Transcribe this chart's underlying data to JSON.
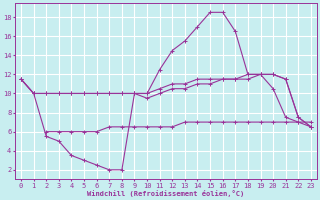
{
  "background_color": "#c8eef0",
  "grid_color": "#ffffff",
  "line_color": "#993399",
  "xlabel": "Windchill (Refroidissement éolien,°C)",
  "xlim": [
    -0.5,
    23.5
  ],
  "ylim": [
    1,
    19.5
  ],
  "yticks": [
    2,
    4,
    6,
    8,
    10,
    12,
    14,
    16,
    18
  ],
  "xticks": [
    0,
    1,
    2,
    3,
    4,
    5,
    6,
    7,
    8,
    9,
    10,
    11,
    12,
    13,
    14,
    15,
    16,
    17,
    18,
    19,
    20,
    21,
    22,
    23
  ],
  "series": [
    {
      "x": [
        0,
        1,
        2,
        3,
        4,
        5,
        6,
        7,
        8,
        9,
        10,
        11,
        12,
        13,
        14,
        15,
        16,
        17,
        18,
        19,
        20,
        21,
        22,
        23
      ],
      "y": [
        11.5,
        10.0,
        5.5,
        5.0,
        3.5,
        3.0,
        2.5,
        2.0,
        2.0,
        10.0,
        10.0,
        12.5,
        14.5,
        15.5,
        17.0,
        18.5,
        18.5,
        16.5,
        12.0,
        12.0,
        10.5,
        7.5,
        7.0,
        6.5
      ]
    },
    {
      "x": [
        0,
        1,
        2,
        3,
        4,
        5,
        6,
        7,
        8,
        9,
        10,
        11,
        12,
        13,
        14,
        15,
        16,
        17,
        18,
        19,
        20,
        21,
        22,
        23
      ],
      "y": [
        11.5,
        10.0,
        10.0,
        10.0,
        10.0,
        10.0,
        10.0,
        10.0,
        10.0,
        10.0,
        10.0,
        10.5,
        11.0,
        11.0,
        11.5,
        11.5,
        11.5,
        11.5,
        12.0,
        12.0,
        12.0,
        11.5,
        7.5,
        6.5
      ]
    },
    {
      "x": [
        0,
        1,
        2,
        3,
        4,
        5,
        6,
        7,
        8,
        9,
        10,
        11,
        12,
        13,
        14,
        15,
        16,
        17,
        18,
        19,
        20,
        21,
        22,
        23
      ],
      "y": [
        11.5,
        10.0,
        10.0,
        10.0,
        10.0,
        10.0,
        10.0,
        10.0,
        10.0,
        10.0,
        9.5,
        10.0,
        10.5,
        10.5,
        11.0,
        11.0,
        11.5,
        11.5,
        11.5,
        12.0,
        12.0,
        11.5,
        7.5,
        6.5
      ]
    },
    {
      "x": [
        2,
        3,
        4,
        5,
        6,
        7,
        8,
        9,
        10,
        11,
        12,
        13,
        14,
        15,
        16,
        17,
        18,
        19,
        20,
        21,
        22,
        23
      ],
      "y": [
        6.0,
        6.0,
        6.0,
        6.0,
        6.0,
        6.5,
        6.5,
        6.5,
        6.5,
        6.5,
        6.5,
        7.0,
        7.0,
        7.0,
        7.0,
        7.0,
        7.0,
        7.0,
        7.0,
        7.0,
        7.0,
        7.0
      ]
    }
  ]
}
